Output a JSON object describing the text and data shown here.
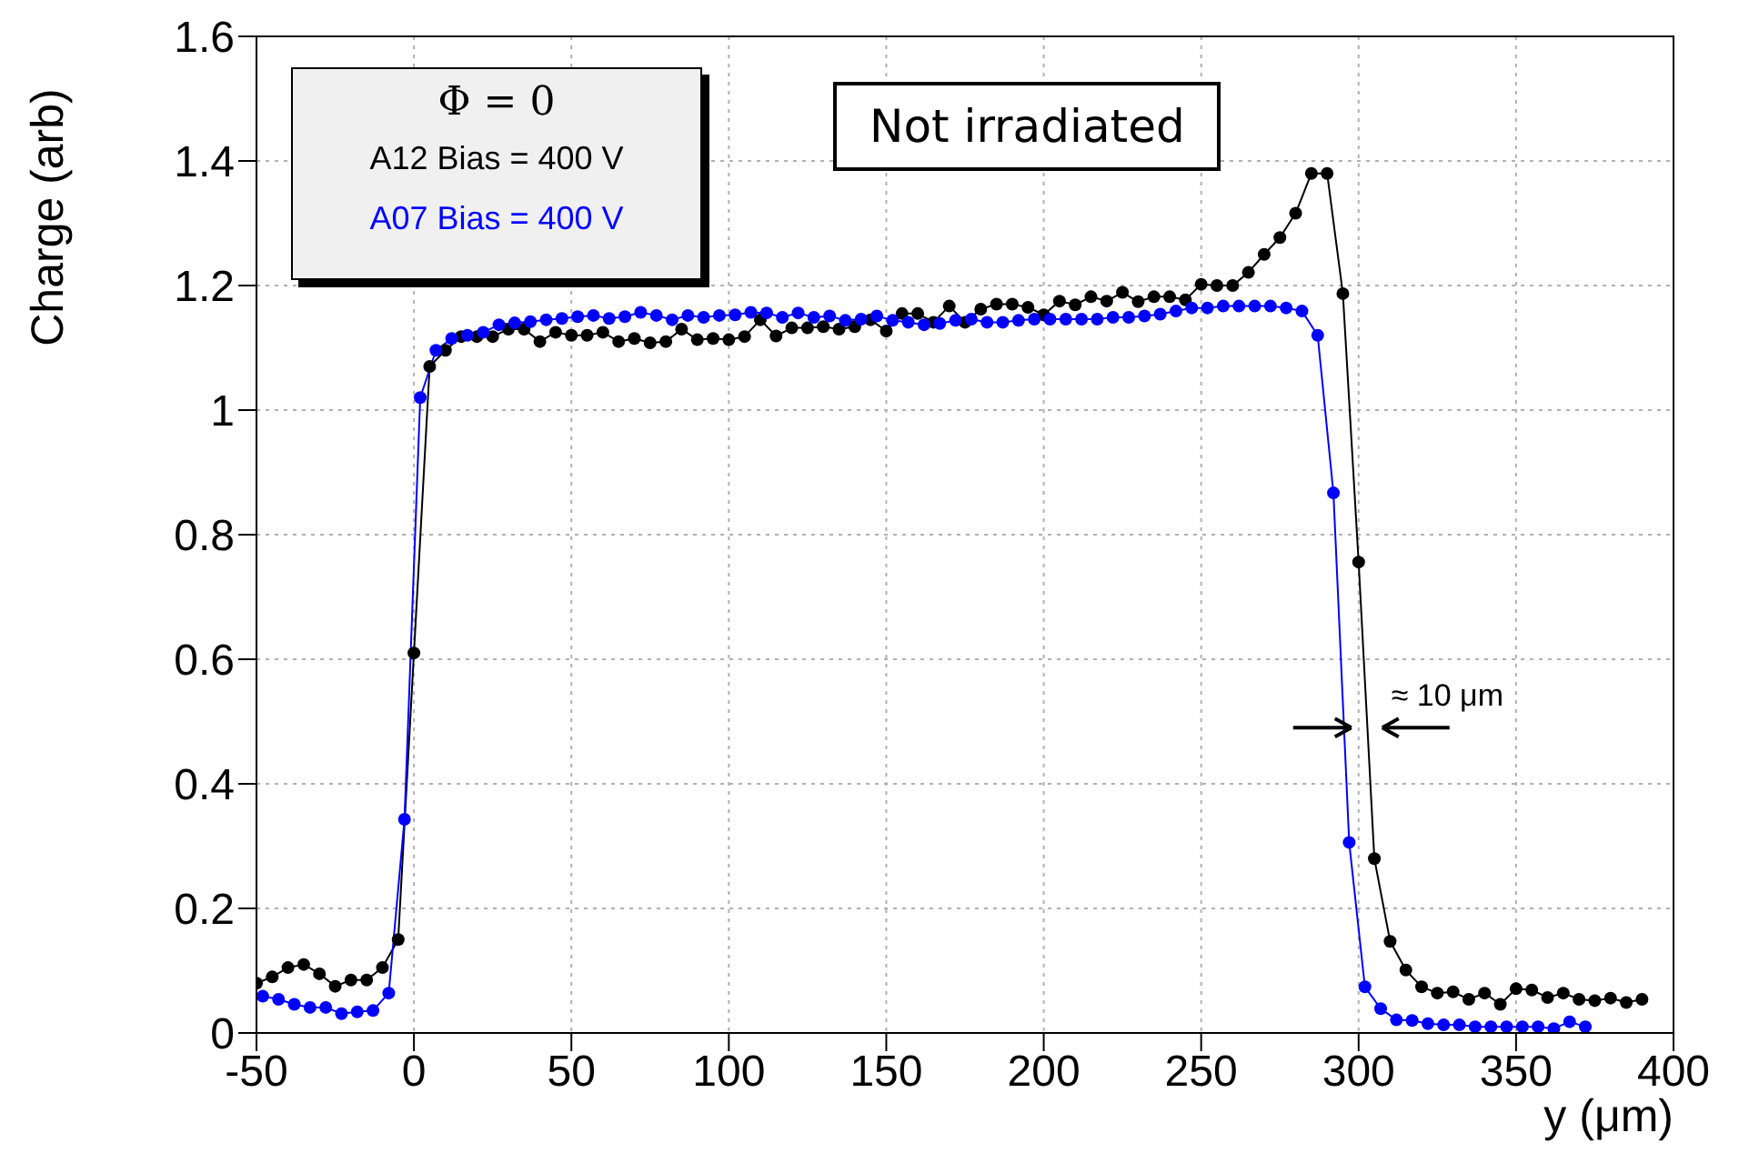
{
  "chart_data": {
    "type": "line",
    "xlabel": "y (μm)",
    "ylabel": "Charge (arb)",
    "legend_title": "Φ = 0",
    "legend": "top left",
    "grid": true,
    "marker": "circle",
    "line_style": "solid",
    "xlim": [
      -50,
      400
    ],
    "xticks": [
      -50,
      0,
      50,
      100,
      150,
      200,
      250,
      300,
      350,
      400
    ],
    "ylim": [
      0,
      1.6
    ],
    "yticks": [
      0,
      0.2,
      0.4,
      0.6,
      0.8,
      1,
      1.2,
      1.4,
      1.6
    ],
    "annotations": [
      "Not irradiated",
      {
        "text": "≈ 10 μm",
        "x": 300,
        "y": 0.49
      }
    ],
    "series": [
      {
        "name": "A12 Bias = 400 V",
        "color": "#000000",
        "x": [
          -50,
          -45,
          -40,
          -35,
          -30,
          -25,
          -20,
          -15,
          -10,
          -5,
          0,
          5,
          10,
          15,
          20,
          25,
          30,
          35,
          40,
          45,
          50,
          55,
          60,
          65,
          70,
          75,
          80,
          85,
          90,
          95,
          100,
          105,
          110,
          115,
          120,
          125,
          130,
          135,
          140,
          145,
          150,
          155,
          160,
          165,
          170,
          175,
          180,
          185,
          190,
          195,
          200,
          205,
          210,
          215,
          220,
          225,
          230,
          235,
          240,
          245,
          250,
          255,
          260,
          265,
          270,
          275,
          280,
          285,
          290,
          295,
          300,
          305,
          310,
          315,
          320,
          325,
          330,
          335,
          340,
          345,
          350,
          355,
          360,
          365,
          370,
          375,
          380,
          385,
          390
        ],
        "values": [
          0.08,
          0.09,
          0.105,
          0.11,
          0.095,
          0.075,
          0.085,
          0.085,
          0.105,
          0.15,
          0.61,
          1.07,
          1.096,
          1.118,
          1.118,
          1.118,
          1.13,
          1.13,
          1.11,
          1.125,
          1.12,
          1.12,
          1.125,
          1.11,
          1.115,
          1.108,
          1.11,
          1.13,
          1.113,
          1.115,
          1.113,
          1.118,
          1.145,
          1.119,
          1.132,
          1.132,
          1.134,
          1.13,
          1.134,
          1.145,
          1.127,
          1.155,
          1.155,
          1.141,
          1.167,
          1.141,
          1.162,
          1.17,
          1.17,
          1.165,
          1.153,
          1.175,
          1.169,
          1.182,
          1.175,
          1.189,
          1.174,
          1.182,
          1.182,
          1.177,
          1.202,
          1.2,
          1.2,
          1.221,
          1.25,
          1.277,
          1.316,
          1.38,
          1.38,
          1.187,
          0.756,
          0.28,
          0.147,
          0.101,
          0.074,
          0.064,
          0.066,
          0.054,
          0.064,
          0.046,
          0.071,
          0.069,
          0.057,
          0.064,
          0.054,
          0.052,
          0.056,
          0.049,
          0.054
        ]
      },
      {
        "name": "A07 Bias = 400 V",
        "color": "#0000ff",
        "x": [
          -48,
          -43,
          -38,
          -33,
          -28,
          -23,
          -18,
          -13,
          -8,
          -3,
          2,
          7,
          12,
          17,
          22,
          27,
          32,
          37,
          42,
          47,
          52,
          57,
          62,
          67,
          72,
          77,
          82,
          87,
          92,
          97,
          102,
          107,
          112,
          117,
          122,
          127,
          132,
          137,
          142,
          147,
          152,
          157,
          162,
          167,
          172,
          177,
          182,
          187,
          192,
          197,
          202,
          207,
          212,
          217,
          222,
          227,
          232,
          237,
          242,
          247,
          252,
          257,
          262,
          267,
          272,
          277,
          282,
          287,
          292,
          297,
          302,
          307,
          312,
          317,
          322,
          327,
          332,
          337,
          342,
          347,
          352,
          357,
          362,
          367,
          372
        ],
        "values": [
          0.059,
          0.054,
          0.046,
          0.041,
          0.041,
          0.031,
          0.034,
          0.036,
          0.064,
          0.343,
          1.02,
          1.096,
          1.115,
          1.12,
          1.125,
          1.137,
          1.14,
          1.142,
          1.145,
          1.147,
          1.15,
          1.152,
          1.147,
          1.15,
          1.157,
          1.152,
          1.145,
          1.152,
          1.149,
          1.152,
          1.153,
          1.157,
          1.156,
          1.149,
          1.156,
          1.149,
          1.151,
          1.144,
          1.146,
          1.151,
          1.144,
          1.141,
          1.137,
          1.139,
          1.144,
          1.146,
          1.141,
          1.141,
          1.144,
          1.146,
          1.146,
          1.146,
          1.146,
          1.146,
          1.149,
          1.149,
          1.151,
          1.154,
          1.159,
          1.164,
          1.164,
          1.167,
          1.167,
          1.167,
          1.167,
          1.164,
          1.159,
          1.12,
          0.867,
          0.306,
          0.074,
          0.039,
          0.021,
          0.02,
          0.015,
          0.013,
          0.013,
          0.01,
          0.01,
          0.01,
          0.01,
          0.01,
          0.007,
          0.018,
          0.01
        ]
      }
    ]
  }
}
